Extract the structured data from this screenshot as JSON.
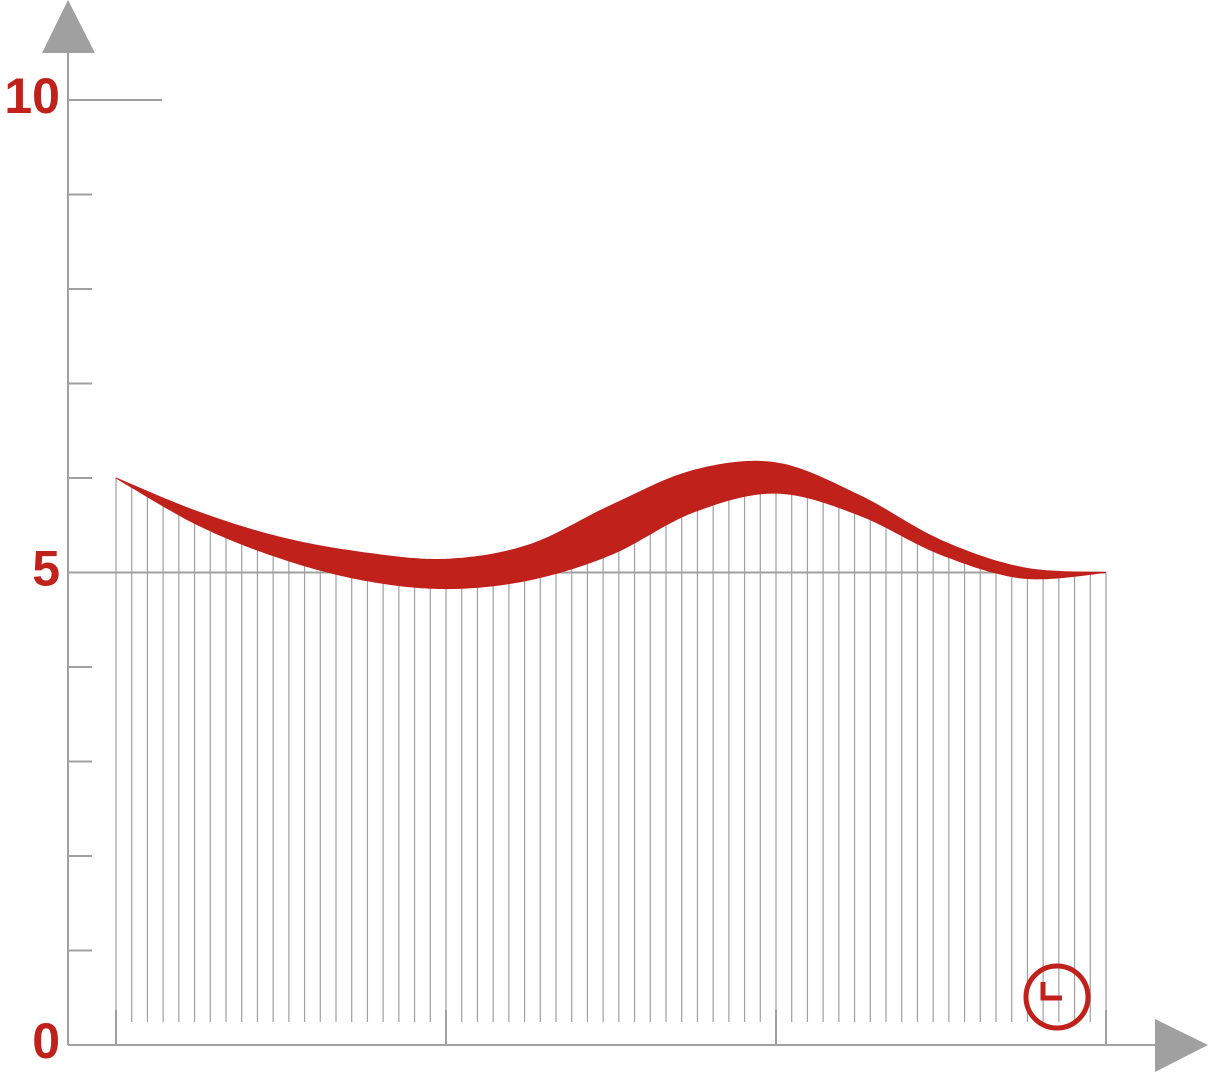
{
  "chart_data": {
    "type": "band",
    "x": [
      0,
      0.25,
      0.5,
      0.75,
      1,
      1.25,
      1.5,
      1.75,
      2,
      2.25,
      2.5,
      2.75,
      3
    ],
    "upper": [
      6.0,
      5.64,
      5.37,
      5.21,
      5.14,
      5.29,
      5.71,
      6.08,
      6.16,
      5.82,
      5.34,
      5.05,
      5.0
    ],
    "lower": [
      6.0,
      5.5,
      5.15,
      4.92,
      4.83,
      4.92,
      5.19,
      5.64,
      5.84,
      5.61,
      5.19,
      4.94,
      5.0
    ],
    "color": "#c0211b",
    "label_color": "#c0211b",
    "axis_color": "#a0a0a0",
    "xlim": [
      0,
      3
    ],
    "ylim": [
      0,
      10
    ],
    "yticks": [
      0,
      5,
      10
    ],
    "minor_yticks": [
      1,
      2,
      3,
      4,
      6,
      7,
      8,
      9
    ]
  }
}
